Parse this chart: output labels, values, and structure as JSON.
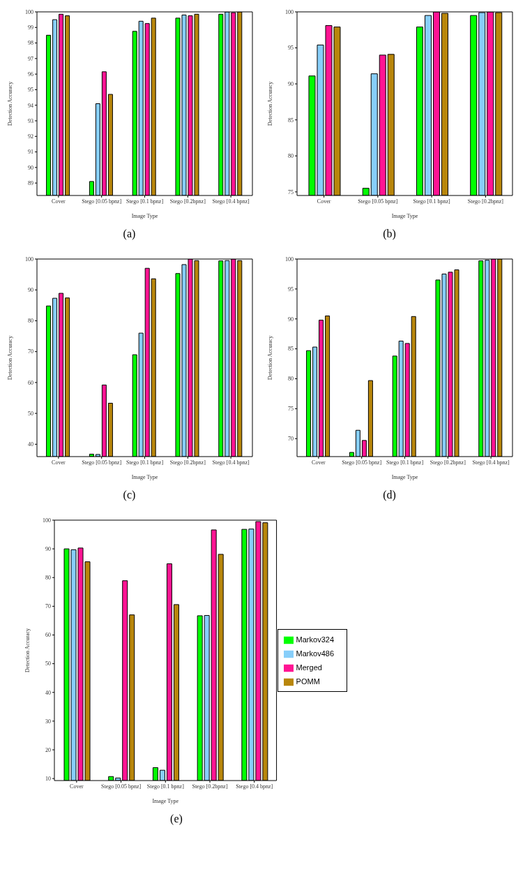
{
  "chart_data": [
    {
      "type": "bar",
      "title": "(a)",
      "xlabel": "Image Type",
      "ylabel": "Detection Accuracy",
      "categories": [
        "Cover",
        "Stego [0.05 bpnz]",
        "Stego [0.1 bpnz]",
        "Stego [0.2bpnz]",
        "Stego [0.4 bpnz]"
      ],
      "ylim": [
        88.2,
        100
      ],
      "yticks": [
        89,
        90,
        91,
        92,
        93,
        94,
        95,
        96,
        97,
        98,
        99,
        100
      ],
      "grid": false,
      "legend": false,
      "series": [
        {
          "color": "#00ff00",
          "values": [
            98.5,
            89.1,
            98.75,
            99.6,
            99.85
          ]
        },
        {
          "color": "#87cefa",
          "values": [
            99.5,
            94.1,
            99.4,
            99.8,
            100
          ]
        },
        {
          "color": "#ff1493",
          "values": [
            99.85,
            96.15,
            99.25,
            99.75,
            99.95
          ]
        },
        {
          "color": "#b8860b",
          "values": [
            99.75,
            94.7,
            99.6,
            99.85,
            100
          ]
        }
      ]
    },
    {
      "type": "bar",
      "title": "(b)",
      "xlabel": "Image Type",
      "ylabel": "Detection Accuracy",
      "categories": [
        "Cover",
        "Stego [0.05 bpnz]",
        "Stego [0.1 bpnz]",
        "Stego [0.2bpnz]"
      ],
      "ylim": [
        74.5,
        100
      ],
      "yticks": [
        75,
        80,
        85,
        90,
        95,
        100
      ],
      "grid": false,
      "legend": false,
      "series": [
        {
          "color": "#00ff00",
          "values": [
            91.1,
            75.5,
            97.9,
            99.5
          ]
        },
        {
          "color": "#87cefa",
          "values": [
            95.4,
            91.4,
            99.5,
            99.9
          ]
        },
        {
          "color": "#ff1493",
          "values": [
            98.1,
            94.0,
            100,
            100
          ]
        },
        {
          "color": "#b8860b",
          "values": [
            97.9,
            94.1,
            99.8,
            99.9
          ]
        }
      ]
    },
    {
      "type": "bar",
      "title": "(c)",
      "xlabel": "Image Type",
      "ylabel": "Detection Accuracy",
      "categories": [
        "Cover",
        "Stego [0.05 bpnz]",
        "Stego [0.1 bpnz]",
        "Stego [0.2bpnz]",
        "Stego [0.4 bpnz]"
      ],
      "ylim": [
        36,
        100
      ],
      "yticks": [
        40,
        50,
        60,
        70,
        80,
        90,
        100
      ],
      "grid": false,
      "legend": false,
      "series": [
        {
          "color": "#00ff00",
          "values": [
            84.8,
            36.8,
            69.0,
            95.3,
            99.4
          ]
        },
        {
          "color": "#87cefa",
          "values": [
            87.3,
            36.7,
            76.0,
            98.2,
            99.5
          ]
        },
        {
          "color": "#ff1493",
          "values": [
            88.9,
            59.2,
            97.0,
            100,
            100
          ]
        },
        {
          "color": "#b8860b",
          "values": [
            87.4,
            53.3,
            93.6,
            99.5,
            99.5
          ]
        }
      ]
    },
    {
      "type": "bar",
      "title": "(d)",
      "xlabel": "Image Type",
      "ylabel": "Detection Accuracy",
      "categories": [
        "Cover",
        "Stego [0.05 bpnz]",
        "Stego [0.1 bpnz]",
        "Stego [0.2bpnz]",
        "Stego [0.4 bpnz]"
      ],
      "ylim": [
        67,
        100
      ],
      "yticks": [
        70,
        75,
        80,
        85,
        90,
        95,
        100
      ],
      "grid": false,
      "legend": false,
      "series": [
        {
          "color": "#00ff00",
          "values": [
            84.7,
            67.7,
            83.8,
            96.5,
            99.7
          ]
        },
        {
          "color": "#87cefa",
          "values": [
            85.3,
            71.4,
            86.3,
            97.5,
            99.8
          ]
        },
        {
          "color": "#ff1493",
          "values": [
            89.8,
            69.7,
            85.9,
            97.8,
            100
          ]
        },
        {
          "color": "#b8860b",
          "values": [
            90.5,
            79.7,
            90.4,
            98.2,
            100
          ]
        }
      ]
    },
    {
      "type": "bar",
      "title": "(e)",
      "xlabel": "Image Type",
      "ylabel": "Detection Accuracy",
      "categories": [
        "Cover",
        "Stego [0.05 bpnz]",
        "Stego [0.1 bpnz]",
        "Stego [0.2bpnz]",
        "Stego [0.4 bpnz]"
      ],
      "ylim": [
        9.3,
        100
      ],
      "yticks": [
        10,
        20,
        30,
        40,
        50,
        60,
        70,
        80,
        90,
        100
      ],
      "grid": false,
      "legend": "right",
      "series": [
        {
          "name": "Markov324",
          "color": "#00ff00",
          "values": [
            90.0,
            10.7,
            13.8,
            66.7,
            96.8
          ]
        },
        {
          "name": "Markov486",
          "color": "#87cefa",
          "values": [
            89.7,
            10.2,
            12.9,
            66.8,
            96.9
          ]
        },
        {
          "name": "Merged",
          "color": "#ff1493",
          "values": [
            90.3,
            78.9,
            84.8,
            96.6,
            99.5
          ]
        },
        {
          "name": "POMM",
          "color": "#b8860b",
          "values": [
            85.5,
            67.0,
            70.6,
            88.1,
            99.1
          ]
        }
      ]
    }
  ]
}
